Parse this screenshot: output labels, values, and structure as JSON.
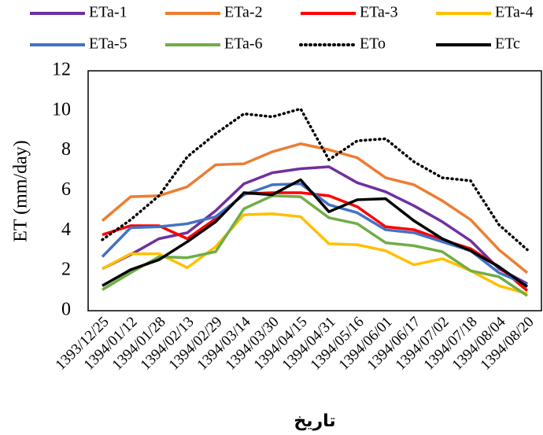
{
  "chart_data": {
    "type": "line",
    "x_label": "تاریخ",
    "y_label": "ET (mm/day)",
    "categories": [
      "1393/12/25",
      "1394/01/12",
      "1394/01/28",
      "1394/02/13",
      "1394/02/29",
      "1394/03/14",
      "1394/03/30",
      "1394/04/15",
      "1394/04/31",
      "1394/05/16",
      "1394/06/01",
      "1394/06/17",
      "1394/07/02",
      "1394/07/18",
      "1394/08/04",
      "1394/08/20"
    ],
    "series": [
      {
        "name": "ETa-1",
        "color": "#7030a0",
        "values": [
          2.1,
          2.8,
          3.6,
          3.9,
          5.0,
          6.35,
          6.9,
          7.1,
          7.2,
          6.4,
          5.95,
          5.25,
          4.45,
          3.5,
          2.1,
          1.35
        ]
      },
      {
        "name": "ETa-2",
        "color": "#ed7d31",
        "values": [
          4.5,
          5.7,
          5.75,
          6.2,
          7.3,
          7.35,
          7.95,
          8.35,
          8.05,
          7.65,
          6.65,
          6.3,
          5.5,
          4.55,
          3.05,
          1.9
        ]
      },
      {
        "name": "ETa-3",
        "color": "#ff0000",
        "values": [
          3.8,
          4.25,
          4.25,
          3.6,
          4.6,
          5.85,
          5.9,
          5.9,
          5.75,
          5.2,
          4.2,
          4.05,
          3.55,
          3.1,
          2.2,
          1.0
        ]
      },
      {
        "name": "ETa-4",
        "color": "#ffc000",
        "values": [
          2.1,
          2.85,
          2.85,
          2.15,
          3.2,
          4.8,
          4.85,
          4.7,
          3.35,
          3.3,
          3.0,
          2.3,
          2.6,
          2.0,
          1.25,
          0.85
        ]
      },
      {
        "name": "ETa-5",
        "color": "#4472c4",
        "values": [
          2.7,
          4.15,
          4.2,
          4.35,
          4.7,
          5.8,
          6.3,
          6.35,
          5.3,
          4.9,
          4.05,
          3.9,
          3.45,
          3.0,
          1.9,
          1.3
        ]
      },
      {
        "name": "ETa-6",
        "color": "#70ad47",
        "values": [
          1.05,
          1.9,
          2.7,
          2.65,
          2.95,
          5.1,
          5.75,
          5.7,
          4.65,
          4.35,
          3.4,
          3.25,
          2.95,
          2.0,
          1.7,
          0.75
        ]
      },
      {
        "name": "ETo",
        "color": "#000000",
        "line_style": "dotted",
        "values": [
          3.55,
          4.55,
          5.75,
          7.7,
          8.85,
          9.85,
          9.7,
          10.1,
          7.55,
          8.5,
          8.6,
          7.45,
          6.65,
          6.5,
          4.3,
          3.05
        ]
      },
      {
        "name": "ETc",
        "color": "#000000",
        "values": [
          1.25,
          2.05,
          2.55,
          3.45,
          4.45,
          5.9,
          5.8,
          6.55,
          4.95,
          5.55,
          5.6,
          4.5,
          3.6,
          3.0,
          2.2,
          1.2
        ]
      }
    ],
    "ylim": [
      0,
      12
    ],
    "yticks": [
      0,
      2,
      4,
      6,
      8,
      10,
      12
    ],
    "grid": false,
    "legend": "top"
  }
}
